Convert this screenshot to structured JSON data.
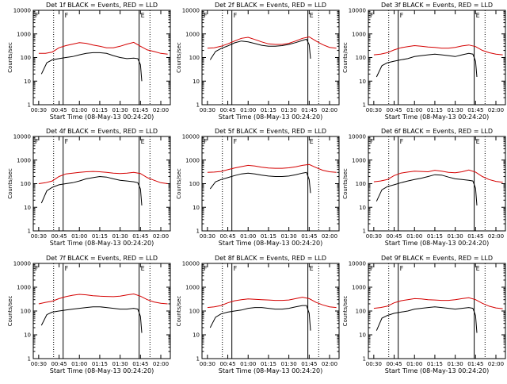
{
  "page": {
    "title_suffix": " BLACK = Events, RED = LLD",
    "xlabel": "Start Time (08-May-13 00:24:20)",
    "ylabel": "Counts/sec",
    "xticks": [
      "00:30",
      "00:45",
      "01:00",
      "01:15",
      "01:30",
      "01:45",
      "02:00"
    ],
    "yticks": [
      "1",
      "10",
      "100",
      "1000",
      "10000"
    ],
    "markers": [
      "F",
      "F",
      "E"
    ]
  },
  "chart_data": [
    {
      "type": "line",
      "title": "Det 1f",
      "ylim": [
        1,
        10000
      ],
      "series": [
        {
          "name": "Events",
          "color": "#000000",
          "x": [
            "00:32",
            "00:36",
            "00:40",
            "00:45",
            "00:50",
            "00:55",
            "01:00",
            "01:05",
            "01:10",
            "01:15",
            "01:20",
            "01:25",
            "01:30",
            "01:35",
            "01:40",
            "01:43",
            "01:45",
            "01:46"
          ],
          "values": [
            20,
            60,
            80,
            90,
            100,
            110,
            130,
            150,
            160,
            160,
            150,
            120,
            100,
            90,
            95,
            90,
            50,
            10
          ]
        },
        {
          "name": "LLD",
          "color": "#d40000",
          "x": [
            "00:30",
            "00:35",
            "00:40",
            "00:45",
            "00:50",
            "00:55",
            "01:00",
            "01:05",
            "01:10",
            "01:15",
            "01:20",
            "01:25",
            "01:30",
            "01:35",
            "01:40",
            "01:45",
            "01:50",
            "01:55",
            "02:00",
            "02:05"
          ],
          "values": [
            150,
            150,
            170,
            260,
            320,
            370,
            430,
            400,
            340,
            300,
            260,
            260,
            300,
            370,
            440,
            300,
            210,
            180,
            150,
            140
          ]
        }
      ]
    },
    {
      "type": "line",
      "title": "Det 2f",
      "ylim": [
        1,
        10000
      ],
      "series": [
        {
          "name": "Events",
          "color": "#000000",
          "x": [
            "00:32",
            "00:36",
            "00:40",
            "00:45",
            "00:50",
            "00:55",
            "01:00",
            "01:05",
            "01:10",
            "01:15",
            "01:20",
            "01:25",
            "01:30",
            "01:35",
            "01:40",
            "01:43",
            "01:45",
            "01:46"
          ],
          "values": [
            80,
            180,
            240,
            310,
            420,
            500,
            460,
            390,
            330,
            300,
            300,
            320,
            360,
            430,
            530,
            600,
            350,
            90
          ]
        },
        {
          "name": "LLD",
          "color": "#d40000",
          "x": [
            "00:30",
            "00:35",
            "00:40",
            "00:45",
            "00:50",
            "00:55",
            "01:00",
            "01:05",
            "01:10",
            "01:15",
            "01:20",
            "01:25",
            "01:30",
            "01:35",
            "01:40",
            "01:45",
            "01:50",
            "01:55",
            "02:00",
            "02:05"
          ],
          "values": [
            250,
            260,
            300,
            380,
            500,
            650,
            720,
            580,
            460,
            380,
            360,
            360,
            400,
            500,
            650,
            750,
            500,
            350,
            270,
            250
          ]
        }
      ]
    },
    {
      "type": "line",
      "title": "Det 3f",
      "ylim": [
        1,
        10000
      ],
      "series": [
        {
          "name": "Events",
          "color": "#000000",
          "x": [
            "00:32",
            "00:36",
            "00:40",
            "00:45",
            "00:50",
            "00:55",
            "01:00",
            "01:05",
            "01:10",
            "01:15",
            "01:20",
            "01:25",
            "01:30",
            "01:35",
            "01:40",
            "01:43",
            "01:45",
            "01:46"
          ],
          "values": [
            15,
            45,
            60,
            70,
            80,
            90,
            110,
            120,
            130,
            140,
            130,
            120,
            110,
            130,
            150,
            140,
            70,
            15
          ]
        },
        {
          "name": "LLD",
          "color": "#d40000",
          "x": [
            "00:30",
            "00:35",
            "00:40",
            "00:45",
            "00:50",
            "00:55",
            "01:00",
            "01:05",
            "01:10",
            "01:15",
            "01:20",
            "01:25",
            "01:30",
            "01:35",
            "01:40",
            "01:45",
            "01:50",
            "01:55",
            "02:00",
            "02:05"
          ],
          "values": [
            130,
            140,
            160,
            210,
            260,
            290,
            320,
            300,
            280,
            270,
            250,
            250,
            270,
            310,
            340,
            290,
            200,
            160,
            140,
            130
          ]
        }
      ]
    },
    {
      "type": "line",
      "title": "Det 4f",
      "ylim": [
        1,
        10000
      ],
      "series": [
        {
          "name": "Events",
          "color": "#000000",
          "x": [
            "00:32",
            "00:36",
            "00:40",
            "00:45",
            "00:50",
            "00:55",
            "01:00",
            "01:05",
            "01:10",
            "01:15",
            "01:20",
            "01:25",
            "01:30",
            "01:35",
            "01:40",
            "01:43",
            "01:45",
            "01:46"
          ],
          "values": [
            15,
            50,
            70,
            90,
            100,
            110,
            130,
            160,
            180,
            200,
            190,
            160,
            140,
            130,
            120,
            110,
            60,
            12
          ]
        },
        {
          "name": "LLD",
          "color": "#d40000",
          "x": [
            "00:30",
            "00:35",
            "00:40",
            "00:45",
            "00:50",
            "00:55",
            "01:00",
            "01:05",
            "01:10",
            "01:15",
            "01:20",
            "01:25",
            "01:30",
            "01:35",
            "01:40",
            "01:45",
            "01:50",
            "01:55",
            "02:00",
            "02:05"
          ],
          "values": [
            100,
            110,
            130,
            200,
            260,
            280,
            300,
            320,
            330,
            320,
            300,
            280,
            270,
            280,
            300,
            270,
            180,
            140,
            110,
            100
          ]
        }
      ]
    },
    {
      "type": "line",
      "title": "Det 5f",
      "ylim": [
        1,
        10000
      ],
      "series": [
        {
          "name": "Events",
          "color": "#000000",
          "x": [
            "00:32",
            "00:36",
            "00:40",
            "00:45",
            "00:50",
            "00:55",
            "01:00",
            "01:05",
            "01:10",
            "01:15",
            "01:20",
            "01:25",
            "01:30",
            "01:35",
            "01:40",
            "01:43",
            "01:45",
            "01:46"
          ],
          "values": [
            60,
            120,
            150,
            180,
            220,
            260,
            280,
            260,
            230,
            210,
            200,
            200,
            210,
            240,
            280,
            300,
            150,
            40
          ]
        },
        {
          "name": "LLD",
          "color": "#d40000",
          "x": [
            "00:30",
            "00:35",
            "00:40",
            "00:45",
            "00:50",
            "00:55",
            "01:00",
            "01:05",
            "01:10",
            "01:15",
            "01:20",
            "01:25",
            "01:30",
            "01:35",
            "01:40",
            "01:45",
            "01:50",
            "01:55",
            "02:00",
            "02:05"
          ],
          "values": [
            300,
            310,
            330,
            390,
            460,
            530,
            600,
            560,
            500,
            460,
            450,
            450,
            470,
            520,
            600,
            650,
            480,
            370,
            320,
            300
          ]
        }
      ]
    },
    {
      "type": "line",
      "title": "Det 6f",
      "ylim": [
        1,
        10000
      ],
      "series": [
        {
          "name": "Events",
          "color": "#000000",
          "x": [
            "00:32",
            "00:36",
            "00:40",
            "00:45",
            "00:50",
            "00:55",
            "01:00",
            "01:05",
            "01:10",
            "01:15",
            "01:20",
            "01:25",
            "01:30",
            "01:35",
            "01:40",
            "01:43",
            "01:45",
            "01:46"
          ],
          "values": [
            18,
            55,
            75,
            90,
            110,
            130,
            150,
            170,
            200,
            240,
            230,
            190,
            160,
            150,
            140,
            130,
            65,
            12
          ]
        },
        {
          "name": "LLD",
          "color": "#d40000",
          "x": [
            "00:30",
            "00:35",
            "00:40",
            "00:45",
            "00:50",
            "00:55",
            "01:00",
            "01:05",
            "01:10",
            "01:15",
            "01:20",
            "01:25",
            "01:30",
            "01:35",
            "01:40",
            "01:45",
            "01:50",
            "01:55",
            "02:00",
            "02:05"
          ],
          "values": [
            120,
            130,
            150,
            220,
            280,
            310,
            340,
            330,
            320,
            370,
            340,
            300,
            290,
            320,
            380,
            310,
            200,
            150,
            125,
            115
          ]
        }
      ]
    },
    {
      "type": "line",
      "title": "Det 7f",
      "ylim": [
        1,
        10000
      ],
      "series": [
        {
          "name": "Events",
          "color": "#000000",
          "x": [
            "00:32",
            "00:36",
            "00:40",
            "00:45",
            "00:50",
            "00:55",
            "01:00",
            "01:05",
            "01:10",
            "01:15",
            "01:20",
            "01:25",
            "01:30",
            "01:35",
            "01:40",
            "01:43",
            "01:45",
            "01:46"
          ],
          "values": [
            25,
            70,
            90,
            100,
            110,
            120,
            130,
            140,
            150,
            150,
            140,
            130,
            120,
            120,
            130,
            120,
            60,
            12
          ]
        },
        {
          "name": "LLD",
          "color": "#d40000",
          "x": [
            "00:30",
            "00:35",
            "00:40",
            "00:45",
            "00:50",
            "00:55",
            "01:00",
            "01:05",
            "01:10",
            "01:15",
            "01:20",
            "01:25",
            "01:30",
            "01:35",
            "01:40",
            "01:45",
            "01:50",
            "01:55",
            "02:00",
            "02:05"
          ],
          "values": [
            200,
            230,
            260,
            330,
            400,
            460,
            500,
            480,
            440,
            420,
            410,
            400,
            420,
            470,
            520,
            420,
            300,
            240,
            210,
            200
          ]
        }
      ]
    },
    {
      "type": "line",
      "title": "Det 8f",
      "ylim": [
        1,
        10000
      ],
      "series": [
        {
          "name": "Events",
          "color": "#000000",
          "x": [
            "00:32",
            "00:36",
            "00:40",
            "00:45",
            "00:50",
            "00:55",
            "01:00",
            "01:05",
            "01:10",
            "01:15",
            "01:20",
            "01:25",
            "01:30",
            "01:35",
            "01:40",
            "01:43",
            "01:45",
            "01:46"
          ],
          "values": [
            20,
            55,
            75,
            90,
            100,
            110,
            130,
            140,
            140,
            130,
            120,
            120,
            130,
            150,
            170,
            170,
            80,
            15
          ]
        },
        {
          "name": "LLD",
          "color": "#d40000",
          "x": [
            "00:30",
            "00:35",
            "00:40",
            "00:45",
            "00:50",
            "00:55",
            "01:00",
            "01:05",
            "01:10",
            "01:15",
            "01:20",
            "01:25",
            "01:30",
            "01:35",
            "01:40",
            "01:45",
            "01:50",
            "01:55",
            "02:00",
            "02:05"
          ],
          "values": [
            140,
            150,
            170,
            220,
            270,
            300,
            320,
            310,
            300,
            290,
            280,
            280,
            290,
            330,
            380,
            330,
            230,
            180,
            150,
            140
          ]
        }
      ]
    },
    {
      "type": "line",
      "title": "Det 9f",
      "ylim": [
        1,
        10000
      ],
      "series": [
        {
          "name": "Events",
          "color": "#000000",
          "x": [
            "00:32",
            "00:36",
            "00:40",
            "00:45",
            "00:50",
            "00:55",
            "01:00",
            "01:05",
            "01:10",
            "01:15",
            "01:20",
            "01:25",
            "01:30",
            "01:35",
            "01:40",
            "01:43",
            "01:45",
            "01:46"
          ],
          "values": [
            15,
            50,
            65,
            80,
            90,
            100,
            120,
            130,
            140,
            150,
            140,
            130,
            120,
            130,
            140,
            130,
            65,
            12
          ]
        },
        {
          "name": "LLD",
          "color": "#d40000",
          "x": [
            "00:30",
            "00:35",
            "00:40",
            "00:45",
            "00:50",
            "00:55",
            "01:00",
            "01:05",
            "01:10",
            "01:15",
            "01:20",
            "01:25",
            "01:30",
            "01:35",
            "01:40",
            "01:45",
            "01:50",
            "01:55",
            "02:00",
            "02:05"
          ],
          "values": [
            130,
            140,
            160,
            220,
            270,
            300,
            330,
            320,
            300,
            290,
            280,
            280,
            300,
            330,
            360,
            300,
            210,
            160,
            135,
            125
          ]
        }
      ]
    }
  ]
}
